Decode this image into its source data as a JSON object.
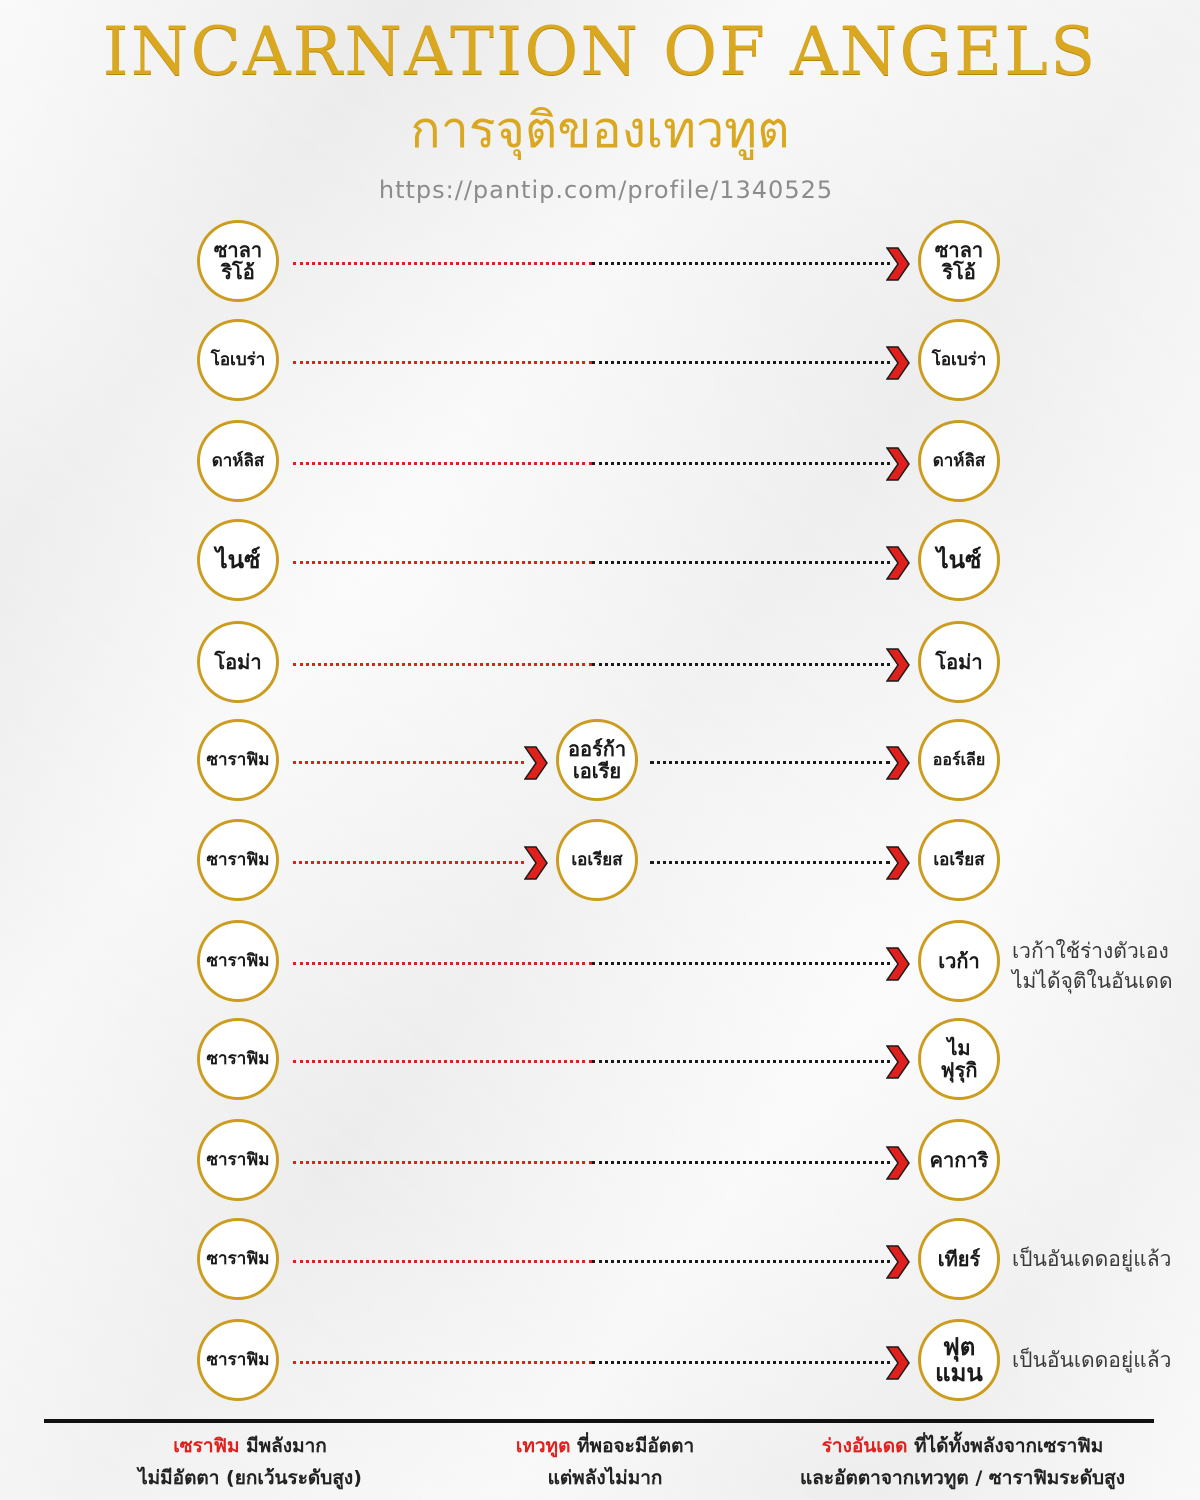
{
  "header": {
    "title": "INCARNATION OF ANGELS",
    "subtitle": "การจุติของเทวทูต",
    "url": "https://pantip.com/profile/1340525"
  },
  "colors": {
    "gold": "#cc9c1e",
    "title_gold": "#d9a820",
    "red": "#e0201c",
    "black": "#1a1a1a"
  },
  "rows": [
    {
      "left": "ซาลา\nริโอ้",
      "mid": "",
      "right": "ซาลา\nริโอ้",
      "note": ""
    },
    {
      "left": "โอเบร่า",
      "mid": "",
      "right": "โอเบร่า",
      "note": ""
    },
    {
      "left": "ดาห์ลิส",
      "mid": "",
      "right": "ดาห์ลิส",
      "note": ""
    },
    {
      "left": "ไนซ์",
      "mid": "",
      "right": "ไนซ์",
      "note": ""
    },
    {
      "left": "โอม่า",
      "mid": "",
      "right": "โอม่า",
      "note": ""
    },
    {
      "left": "ซาราฟิม",
      "mid": "ออร์ก้า\nเอเรีย",
      "right": "ออร์เลีย",
      "note": ""
    },
    {
      "left": "ซาราฟิม",
      "mid": "เอเรียส",
      "right": "เอเรียส",
      "note": ""
    },
    {
      "left": "ซาราฟิม",
      "mid": "",
      "right": "เวก้า",
      "note": "เวก้าใช้ร่างตัวเอง\nไม่ได้จุติในอันเดด"
    },
    {
      "left": "ซาราฟิม",
      "mid": "",
      "right": "ไม\nฟุรุกิ",
      "note": ""
    },
    {
      "left": "ซาราฟิม",
      "mid": "",
      "right": "คาการิ",
      "note": ""
    },
    {
      "left": "ซาราฟิม",
      "mid": "",
      "right": "เทียร์",
      "note": "เป็นอันเดดอยู่แล้ว"
    },
    {
      "left": "ซาราฟิม",
      "mid": "",
      "right": "ฟุต\nแมน",
      "note": "เป็นอันเดดอยู่แล้ว"
    }
  ],
  "legend": {
    "seraphim": {
      "term": "เซราฟิม",
      "line1_rest": " มีพลังมาก",
      "line2": "ไม่มีอัตตา (ยกเว้นระดับสูง)"
    },
    "angel": {
      "term": "เทวทูต",
      "line1_rest": " ที่พอจะมีอัตตา",
      "line2": "แต่พลังไม่มาก"
    },
    "undead": {
      "term": "ร่างอันเดด",
      "line1_rest": " ที่ได้ทั้งพลังจากเซราฟิม",
      "line2": "และอัตตาจากเทวทูต / ซาราฟิมระดับสูง"
    }
  }
}
